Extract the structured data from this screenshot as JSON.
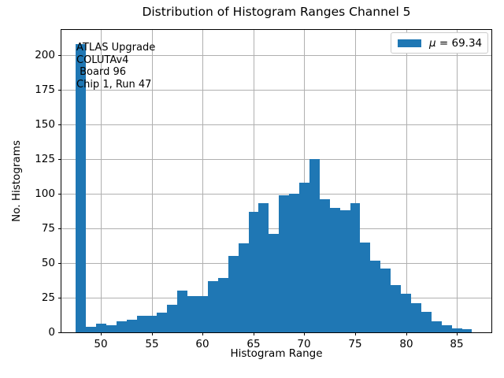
{
  "figure": {
    "title": "Distribution of Histogram Ranges Channel 5",
    "background": "#ffffff"
  },
  "axes": {
    "xlabel": "Histogram Range",
    "ylabel": "No. Histograms",
    "grid_color": "#b0b0b0",
    "spine_color": "#000000"
  },
  "legend": {
    "symbol": "μ",
    "label_rest": " = 69.34",
    "swatch_color": "#1f77b4",
    "border_color": "#cccccc"
  },
  "annotation": {
    "lines": [
      "ATLAS Upgrade",
      "COLUTAv4",
      " Board 96",
      "Chip 1, Run 47"
    ]
  },
  "chart_data": {
    "type": "bar",
    "subtype": "histogram",
    "title": "Distribution of Histogram Ranges Channel 5",
    "xlabel": "Histogram Range",
    "ylabel": "No. Histograms",
    "legend_label": "μ = 69.34",
    "mean": 69.34,
    "annotation_text": "ATLAS Upgrade\nCOLUTAv4\n Board 96\nChip 1, Run 47",
    "bar_color": "#1f77b4",
    "grid": true,
    "bin_width": 1,
    "bin_start": 47.5,
    "bin_centers": [
      48,
      49,
      50,
      51,
      52,
      53,
      54,
      55,
      56,
      57,
      58,
      59,
      60,
      61,
      62,
      63,
      64,
      65,
      66,
      67,
      68,
      69,
      70,
      71,
      72,
      73,
      74,
      75,
      76,
      77,
      78,
      79,
      80,
      81,
      82,
      83,
      84,
      85,
      86
    ],
    "values": [
      208,
      4,
      6,
      5,
      8,
      9,
      12,
      12,
      14,
      20,
      30,
      26,
      26,
      37,
      39,
      55,
      64,
      87,
      93,
      71,
      99,
      100,
      108,
      125,
      96,
      90,
      88,
      93,
      65,
      52,
      46,
      34,
      28,
      21,
      15,
      8,
      5,
      3,
      2
    ],
    "xticks": [
      50,
      55,
      60,
      65,
      70,
      75,
      80,
      85
    ],
    "yticks": [
      0,
      25,
      50,
      75,
      100,
      125,
      150,
      175,
      200
    ],
    "xlim": [
      46.1,
      88.4
    ],
    "ylim": [
      0,
      218.4
    ],
    "legend_position": "upper right"
  }
}
